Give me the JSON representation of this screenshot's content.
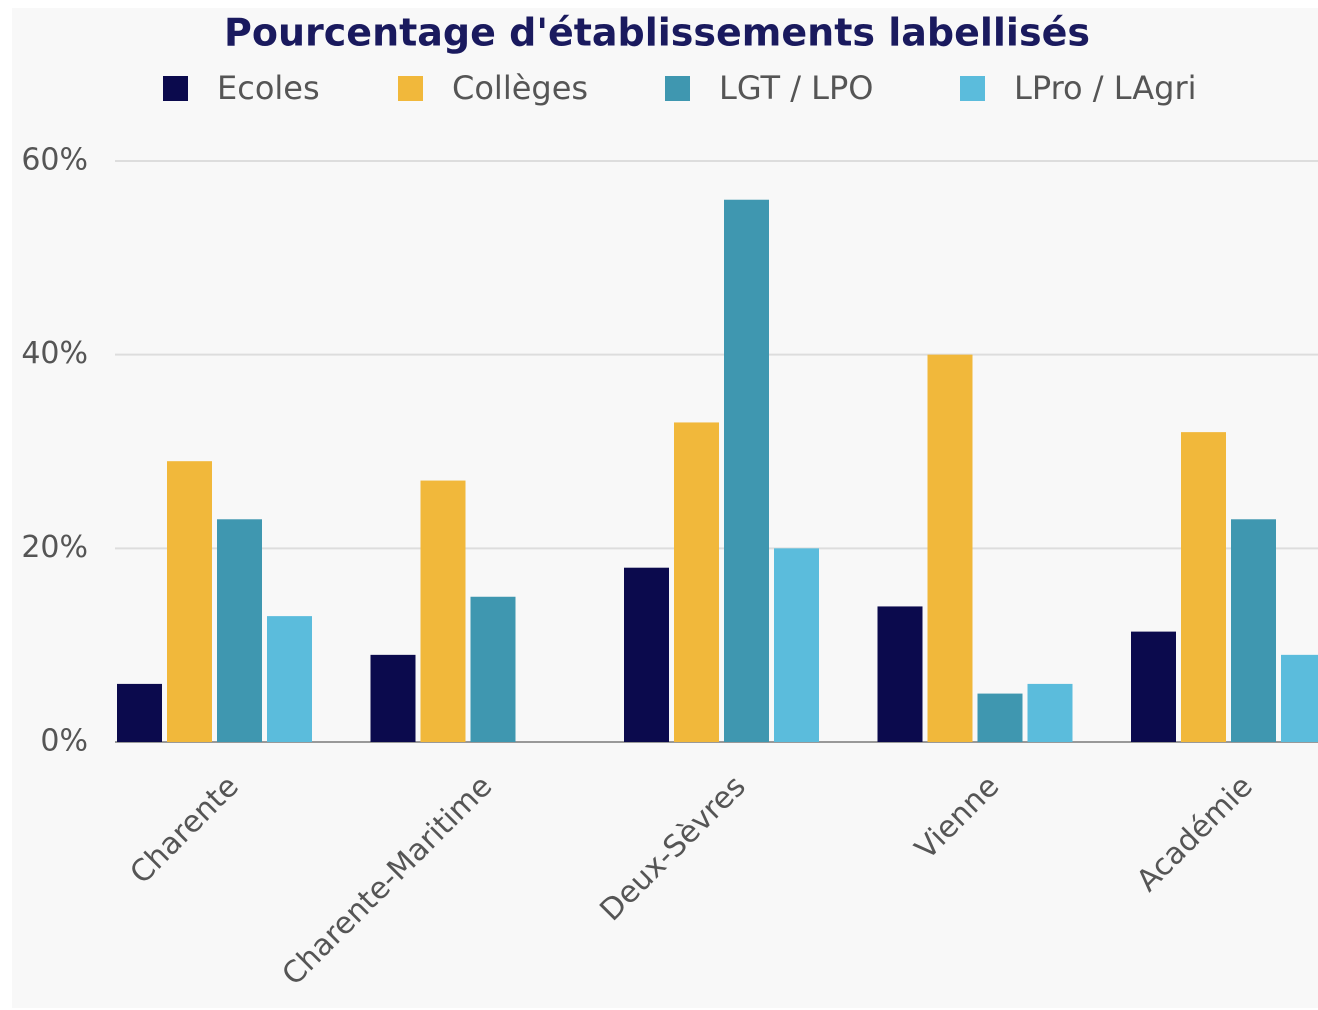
{
  "chart_data": {
    "type": "bar",
    "title": "Pourcentage d'établissements labellisés",
    "categories": [
      "Charente",
      "Charente-Maritime",
      "Deux-Sèvres",
      "Vienne",
      "Académie"
    ],
    "series": [
      {
        "name": "Ecoles",
        "color": "#0b0a4d",
        "values": [
          6,
          9,
          18,
          14,
          11.4
        ]
      },
      {
        "name": "Collèges",
        "color": "#f1b83b",
        "values": [
          29,
          27,
          33,
          40,
          32
        ]
      },
      {
        "name": "LGT / LPO",
        "color": "#3f97b0",
        "values": [
          23,
          15,
          56,
          5,
          23
        ]
      },
      {
        "name": "LPro / LAgri",
        "color": "#5bbcdc",
        "values": [
          13,
          0,
          20,
          6,
          9
        ]
      }
    ],
    "ylim": [
      0,
      60
    ],
    "yticks": [
      {
        "value": 0,
        "label": "0%"
      },
      {
        "value": 20,
        "label": "20%"
      },
      {
        "value": 40,
        "label": "40%"
      },
      {
        "value": 60,
        "label": "60%"
      }
    ],
    "grid": true,
    "legend": "top"
  }
}
